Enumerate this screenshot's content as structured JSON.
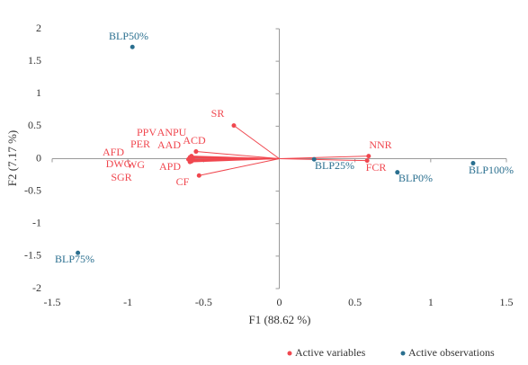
{
  "chart_data": {
    "type": "biplot",
    "x_label": "F1 (88.62 %)",
    "y_label": "F2 (7.17 %)",
    "xlim": [
      -1.5,
      1.5
    ],
    "xticks": [
      -1.5,
      -1,
      -0.5,
      0,
      0.5,
      1,
      1.5
    ],
    "ylim": [
      -2,
      2
    ],
    "yticks": [
      -2,
      -1.5,
      -1,
      -0.5,
      0,
      0.5,
      1,
      1.5,
      2
    ],
    "legend": "bottom-right",
    "series": [
      {
        "name": "Active variables",
        "color": "#f0474f",
        "arrows": true,
        "labels": [
          "SR",
          "NNR",
          "FCR",
          "CF",
          "ACD",
          "PPV",
          "ANPU",
          "PER",
          "AAD",
          "AFD",
          "DWG",
          "WG",
          "SGR",
          "APD"
        ],
        "x": [
          -0.3,
          0.59,
          0.58,
          -0.53,
          -0.55,
          -0.59,
          -0.58,
          -0.59,
          -0.58,
          -0.6,
          -0.59,
          -0.58,
          -0.59,
          -0.57
        ],
        "y": [
          0.51,
          0.04,
          -0.03,
          -0.26,
          0.11,
          0.02,
          0.04,
          0.01,
          0.03,
          -0.01,
          -0.03,
          -0.04,
          -0.05,
          -0.02
        ]
      },
      {
        "name": "Active observations",
        "color": "#2a6f8f",
        "arrows": false,
        "labels": [
          "BLP50%",
          "BLP75%",
          "BLP25%",
          "BLP0%",
          "BLP100%"
        ],
        "x": [
          -0.97,
          -1.33,
          0.23,
          0.78,
          1.28
        ],
        "y": [
          1.72,
          -1.45,
          -0.01,
          -0.21,
          -0.07
        ]
      }
    ]
  }
}
